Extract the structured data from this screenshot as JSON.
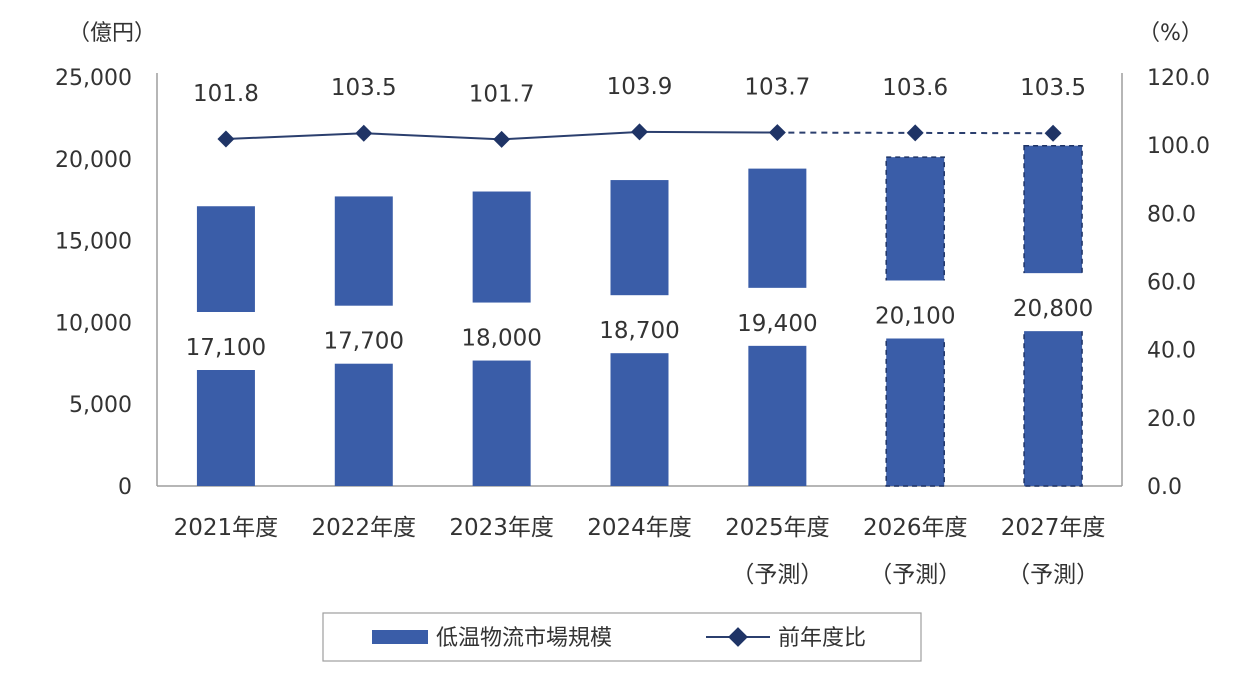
{
  "chart_data": {
    "type": "bar",
    "categories": [
      "2021年度",
      "2022年度",
      "2023年度",
      "2024年度",
      "2025年度",
      "2026年度",
      "2027年度"
    ],
    "category_sublabels": [
      "",
      "",
      "",
      "",
      "（予測）",
      "（予測）",
      "（予測）"
    ],
    "forecast_from_index": 4,
    "series": [
      {
        "name": "低温物流市場規模",
        "type": "bar",
        "axis": "left",
        "values": [
          17100,
          17700,
          18000,
          18700,
          19400,
          20100,
          20800
        ],
        "labels": [
          "17,100",
          "17,700",
          "18,000",
          "18,700",
          "19,400",
          "20,100",
          "20,800"
        ],
        "color": "#3A5DA8"
      },
      {
        "name": "前年度比",
        "type": "line",
        "axis": "right",
        "values": [
          101.8,
          103.5,
          101.7,
          103.9,
          103.7,
          103.6,
          103.5
        ],
        "labels": [
          "101.8",
          "103.5",
          "101.7",
          "103.9",
          "103.7",
          "103.6",
          "103.5"
        ],
        "color": "#2B3F6E"
      }
    ],
    "y_left": {
      "unit": "（億円）",
      "range": [
        0,
        25000
      ],
      "ticks": [
        "0",
        "5,000",
        "10,000",
        "15,000",
        "20,000",
        "25,000"
      ]
    },
    "y_right": {
      "unit": "（%）",
      "range": [
        0,
        120
      ],
      "ticks": [
        "0.0",
        "20.0",
        "40.0",
        "60.0",
        "80.0",
        "100.0",
        "120.0"
      ]
    },
    "grid": false,
    "legend_position": "bottom"
  }
}
